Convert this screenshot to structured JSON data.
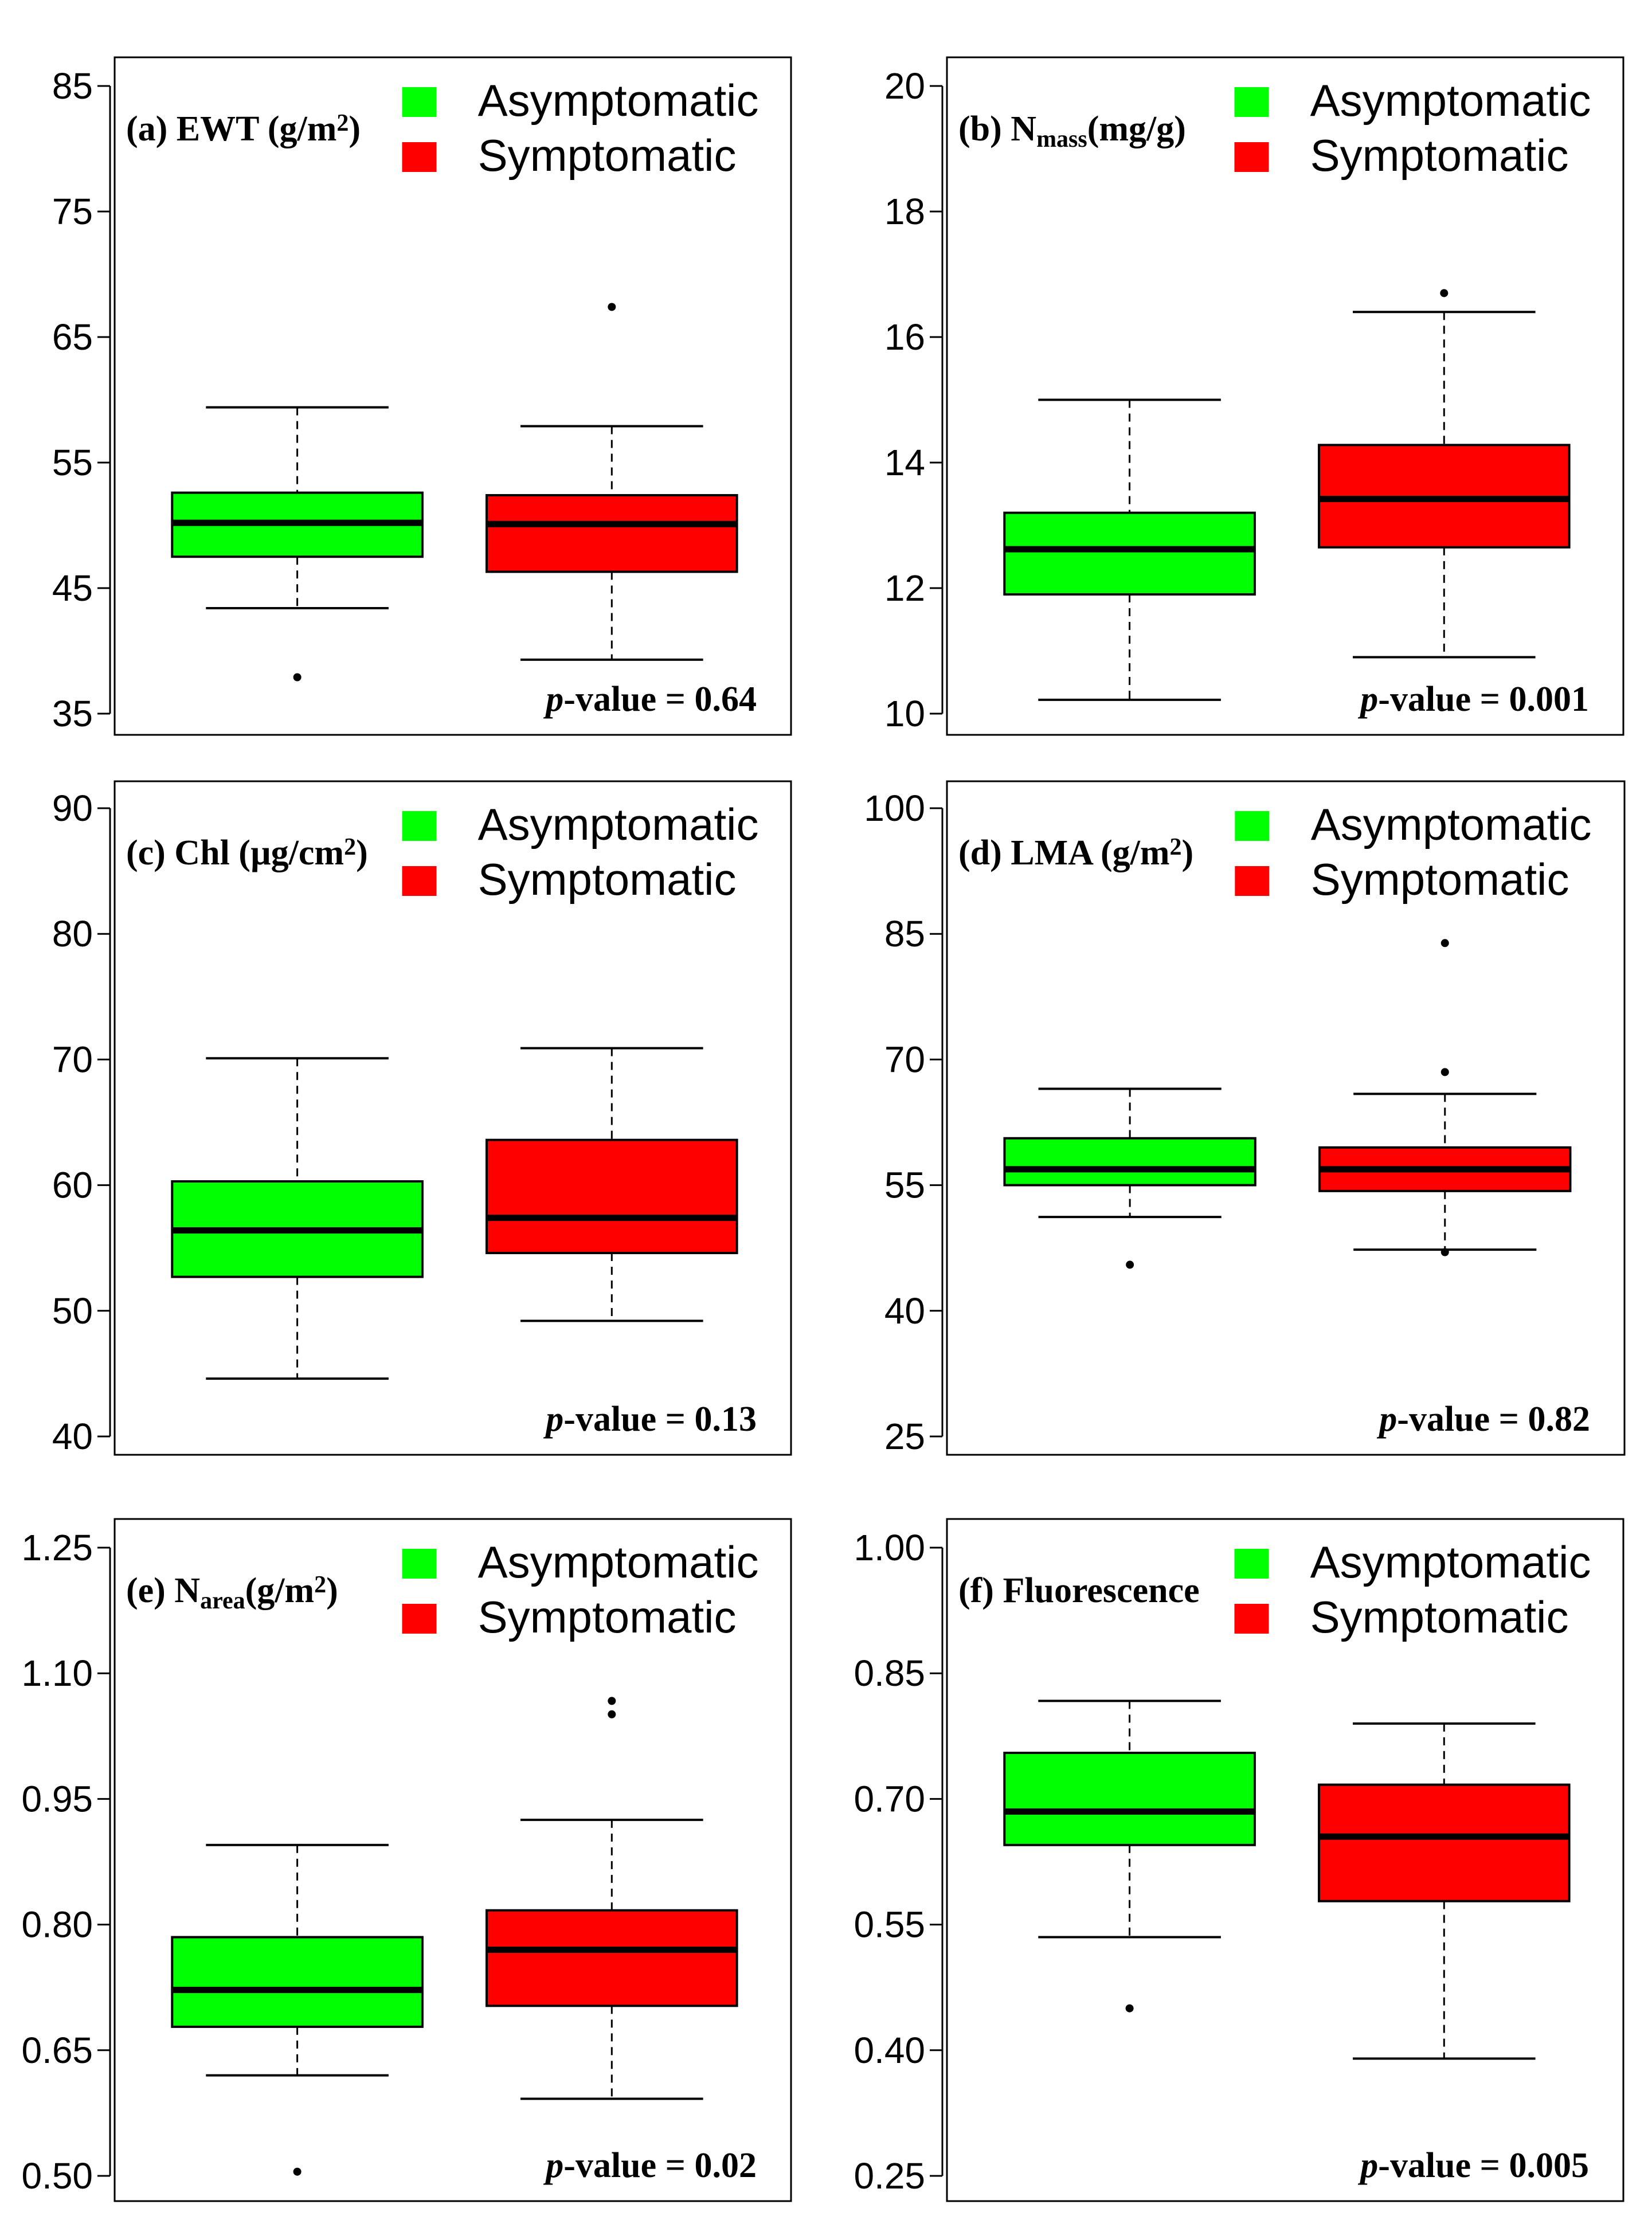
{
  "figure": {
    "colors": {
      "asymptomatic": "#00ff00",
      "symptomatic": "#ff0000",
      "stroke": "#000000"
    },
    "legend": [
      "Asymptomatic",
      "Symptomatic"
    ]
  },
  "chart_data": [
    {
      "type": "box",
      "id": "a",
      "title": {
        "prefix": "(a) EWT (g/m",
        "sup": "2",
        "suffix": ")",
        "sub": ""
      },
      "pvalue_label": "p",
      "pvalue_text": "-value = 0.64",
      "ylim": [
        35,
        85
      ],
      "yticks": [
        35,
        45,
        55,
        65,
        75,
        85
      ],
      "ytick_labels": [
        "35",
        "45",
        "55",
        "65",
        "75",
        "85"
      ],
      "categories": [
        "Asymptomatic",
        "Symptomatic"
      ],
      "boxes": [
        {
          "q1": 47.5,
          "median": 50.2,
          "q3": 52.6,
          "whisker_low": 43.4,
          "whisker_high": 59.4,
          "outliers": [
            37.9
          ]
        },
        {
          "q1": 46.3,
          "median": 50.1,
          "q3": 52.4,
          "whisker_low": 39.3,
          "whisker_high": 57.9,
          "outliers": [
            67.4
          ]
        }
      ]
    },
    {
      "type": "box",
      "id": "b",
      "title": {
        "prefix": "(b) N",
        "sub": "mass",
        "suffix": "(mg/g)",
        "sup": ""
      },
      "pvalue_label": "p",
      "pvalue_text": "-value = 0.001",
      "ylim": [
        10,
        20
      ],
      "yticks": [
        10,
        12,
        14,
        16,
        18,
        20
      ],
      "ytick_labels": [
        "10",
        "12",
        "14",
        "16",
        "18",
        "20"
      ],
      "categories": [
        "Asymptomatic",
        "Symptomatic"
      ],
      "boxes": [
        {
          "q1": 11.9,
          "median": 12.62,
          "q3": 13.2,
          "whisker_low": 10.22,
          "whisker_high": 15.0,
          "outliers": []
        },
        {
          "q1": 12.65,
          "median": 13.42,
          "q3": 14.28,
          "whisker_low": 10.9,
          "whisker_high": 16.4,
          "outliers": [
            16.7
          ]
        }
      ]
    },
    {
      "type": "box",
      "id": "c",
      "title": {
        "prefix": "(c) Chl (µg/cm",
        "sup": "2",
        "suffix": ")",
        "sub": ""
      },
      "pvalue_label": "p",
      "pvalue_text": "-value = 0.13",
      "ylim": [
        40,
        90
      ],
      "yticks": [
        40,
        50,
        60,
        70,
        80,
        90
      ],
      "ytick_labels": [
        "40",
        "50",
        "60",
        "70",
        "80",
        "90"
      ],
      "categories": [
        "Asymptomatic",
        "Symptomatic"
      ],
      "boxes": [
        {
          "q1": 52.7,
          "median": 56.4,
          "q3": 60.3,
          "whisker_low": 44.6,
          "whisker_high": 70.1,
          "outliers": []
        },
        {
          "q1": 54.6,
          "median": 57.4,
          "q3": 63.6,
          "whisker_low": 49.2,
          "whisker_high": 70.9,
          "outliers": []
        }
      ]
    },
    {
      "type": "box",
      "id": "d",
      "title": {
        "prefix": "(d) LMA (g/m",
        "sup": "2",
        "suffix": ")",
        "sub": ""
      },
      "pvalue_label": "p",
      "pvalue_text": "-value = 0.82",
      "ylim": [
        25,
        100
      ],
      "yticks": [
        25,
        40,
        55,
        70,
        85,
        100
      ],
      "ytick_labels": [
        "25",
        "40",
        "55",
        "70",
        "85",
        "100"
      ],
      "categories": [
        "Asymptomatic",
        "Symptomatic"
      ],
      "boxes": [
        {
          "q1": 55.0,
          "median": 56.9,
          "q3": 60.6,
          "whisker_low": 51.2,
          "whisker_high": 66.5,
          "outliers": [
            45.5
          ]
        },
        {
          "q1": 54.3,
          "median": 56.9,
          "q3": 59.5,
          "whisker_low": 47.3,
          "whisker_high": 65.9,
          "outliers": [
            47.0,
            68.5,
            83.9
          ]
        }
      ]
    },
    {
      "type": "box",
      "id": "e",
      "title": {
        "prefix": "(e) N",
        "sub": "area",
        "suffix": "(g/m",
        "sup": "2",
        "suffix2": ")"
      },
      "pvalue_label": "p",
      "pvalue_text": "-value = 0.02",
      "ylim": [
        0.5,
        1.25
      ],
      "yticks": [
        0.5,
        0.65,
        0.8,
        0.95,
        1.1,
        1.25
      ],
      "ytick_labels": [
        "0.50",
        "0.65",
        "0.80",
        "0.95",
        "1.10",
        "1.25"
      ],
      "categories": [
        "Asymptomatic",
        "Symptomatic"
      ],
      "boxes": [
        {
          "q1": 0.678,
          "median": 0.722,
          "q3": 0.785,
          "whisker_low": 0.62,
          "whisker_high": 0.895,
          "outliers": [
            0.505
          ]
        },
        {
          "q1": 0.703,
          "median": 0.77,
          "q3": 0.817,
          "whisker_low": 0.592,
          "whisker_high": 0.925,
          "outliers": [
            1.051,
            1.067
          ]
        }
      ]
    },
    {
      "type": "box",
      "id": "f",
      "title": {
        "prefix": "(f) Fluorescence",
        "sup": "",
        "suffix": "",
        "sub": ""
      },
      "pvalue_label": "p",
      "pvalue_text": "-value = 0.005",
      "ylim": [
        0.25,
        1.0
      ],
      "yticks": [
        0.25,
        0.4,
        0.55,
        0.7,
        0.85,
        1.0
      ],
      "ytick_labels": [
        "0.25",
        "0.40",
        "0.55",
        "0.70",
        "0.85",
        "1.00"
      ],
      "categories": [
        "Asymptomatic",
        "Symptomatic"
      ],
      "boxes": [
        {
          "q1": 0.645,
          "median": 0.685,
          "q3": 0.755,
          "whisker_low": 0.535,
          "whisker_high": 0.817,
          "outliers": [
            0.45
          ]
        },
        {
          "q1": 0.578,
          "median": 0.655,
          "q3": 0.717,
          "whisker_low": 0.39,
          "whisker_high": 0.79,
          "outliers": []
        }
      ]
    }
  ]
}
